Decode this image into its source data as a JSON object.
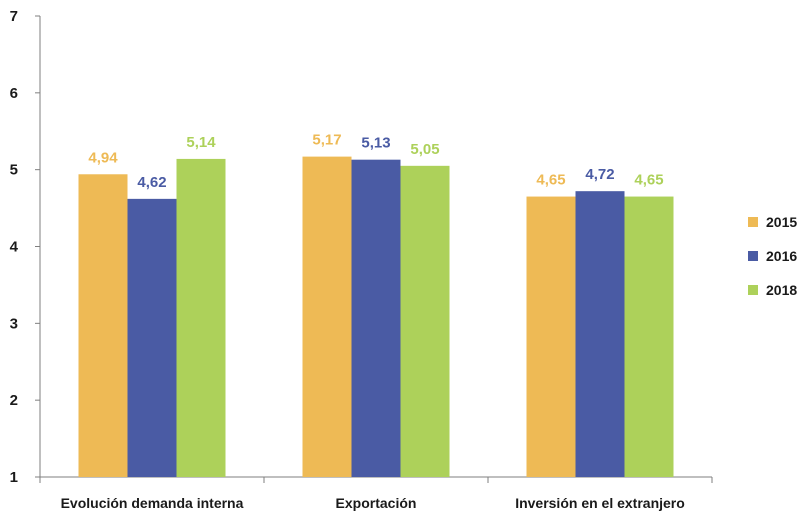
{
  "chart_data": {
    "type": "bar",
    "categories": [
      "Evolución demanda interna",
      "Exportación",
      "Inversión en el extranjero"
    ],
    "series": [
      {
        "name": "2015",
        "color": "#EEBA55",
        "values": [
          4.94,
          5.17,
          4.65
        ],
        "labels": [
          "4,94",
          "5,17",
          "4,65"
        ]
      },
      {
        "name": "2016",
        "color": "#4A5BA4",
        "values": [
          4.62,
          5.13,
          4.72
        ],
        "labels": [
          "4,62",
          "5,13",
          "4,72"
        ]
      },
      {
        "name": "2018",
        "color": "#ADD15A",
        "values": [
          5.14,
          5.05,
          4.65
        ],
        "labels": [
          "5,14",
          "5,05",
          "4,65"
        ]
      }
    ],
    "ylim": [
      1,
      7
    ],
    "yticks": [
      "1",
      "2",
      "3",
      "4",
      "5",
      "6",
      "7"
    ],
    "grid": false,
    "legend_position": "right",
    "title": "",
    "xlabel": "",
    "ylabel": ""
  }
}
